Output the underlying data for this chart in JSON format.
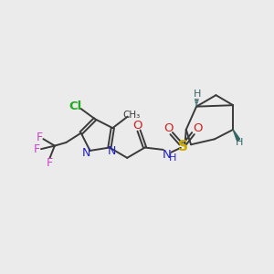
{
  "bg_color": "#ebebeb",
  "line_color": "#3a3a3a",
  "line_width": 1.4,
  "atom_colors": {
    "N": "#2222cc",
    "O": "#cc2222",
    "S": "#ccaa00",
    "Cl": "#22aa22",
    "F": "#cc44cc",
    "H": "#336666",
    "C": "#3a3a3a"
  }
}
